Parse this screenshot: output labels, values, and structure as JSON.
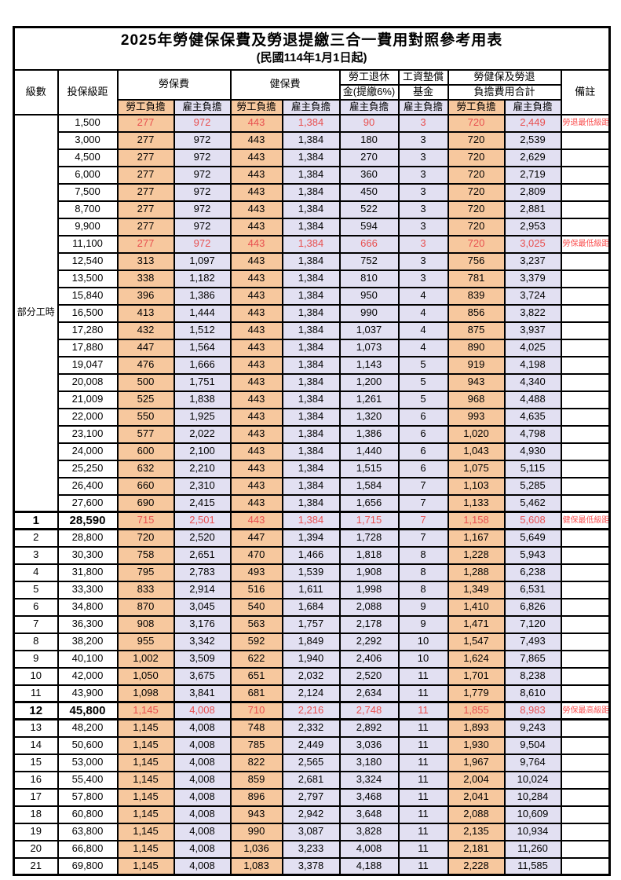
{
  "title": "2025年勞健保保費及勞退提繳三合一費用對照參考用表",
  "subtitle": "(民國114年1月1日起)",
  "colors": {
    "employee_bg": "#F7C89E",
    "employer_bg": "#E2E0F2",
    "highlight_red": "#E85050",
    "remark_red": "#FA5252"
  },
  "header": {
    "level": "級數",
    "bracket": "投保級距",
    "labor_ins": "勞保費",
    "health_ins": "健保費",
    "pension_l1": "勞工退休",
    "pension_l2": "金(提繳6%)",
    "fund_l1": "工資墊償",
    "fund_l2": "基金",
    "total_l1": "勞健保及勞退",
    "total_l2": "負擔費用合計",
    "remark": "備註",
    "employee": "勞工負擔",
    "employer": "雇主負擔"
  },
  "part_time_label": "部分工時",
  "part_time_rowspan": 23,
  "rows": [
    {
      "lv": "",
      "br": "1,500",
      "c": [
        "277",
        "972",
        "443",
        "1,384",
        "90",
        "3",
        "720",
        "2,449"
      ],
      "rm": "勞退最低級距",
      "hl": true
    },
    {
      "lv": "",
      "br": "3,000",
      "c": [
        "277",
        "972",
        "443",
        "1,384",
        "180",
        "3",
        "720",
        "2,539"
      ],
      "rm": ""
    },
    {
      "lv": "",
      "br": "4,500",
      "c": [
        "277",
        "972",
        "443",
        "1,384",
        "270",
        "3",
        "720",
        "2,629"
      ],
      "rm": ""
    },
    {
      "lv": "",
      "br": "6,000",
      "c": [
        "277",
        "972",
        "443",
        "1,384",
        "360",
        "3",
        "720",
        "2,719"
      ],
      "rm": ""
    },
    {
      "lv": "",
      "br": "7,500",
      "c": [
        "277",
        "972",
        "443",
        "1,384",
        "450",
        "3",
        "720",
        "2,809"
      ],
      "rm": ""
    },
    {
      "lv": "",
      "br": "8,700",
      "c": [
        "277",
        "972",
        "443",
        "1,384",
        "522",
        "3",
        "720",
        "2,881"
      ],
      "rm": ""
    },
    {
      "lv": "",
      "br": "9,900",
      "c": [
        "277",
        "972",
        "443",
        "1,384",
        "594",
        "3",
        "720",
        "2,953"
      ],
      "rm": ""
    },
    {
      "lv": "",
      "br": "11,100",
      "c": [
        "277",
        "972",
        "443",
        "1,384",
        "666",
        "3",
        "720",
        "3,025"
      ],
      "rm": "勞保最低級距",
      "hl": true
    },
    {
      "lv": "",
      "br": "12,540",
      "c": [
        "313",
        "1,097",
        "443",
        "1,384",
        "752",
        "3",
        "756",
        "3,237"
      ],
      "rm": ""
    },
    {
      "lv": "",
      "br": "13,500",
      "c": [
        "338",
        "1,182",
        "443",
        "1,384",
        "810",
        "3",
        "781",
        "3,379"
      ],
      "rm": ""
    },
    {
      "lv": "",
      "br": "15,840",
      "c": [
        "396",
        "1,386",
        "443",
        "1,384",
        "950",
        "4",
        "839",
        "3,724"
      ],
      "rm": ""
    },
    {
      "lv": "",
      "br": "16,500",
      "c": [
        "413",
        "1,444",
        "443",
        "1,384",
        "990",
        "4",
        "856",
        "3,822"
      ],
      "rm": ""
    },
    {
      "lv": "",
      "br": "17,280",
      "c": [
        "432",
        "1,512",
        "443",
        "1,384",
        "1,037",
        "4",
        "875",
        "3,937"
      ],
      "rm": ""
    },
    {
      "lv": "",
      "br": "17,880",
      "c": [
        "447",
        "1,564",
        "443",
        "1,384",
        "1,073",
        "4",
        "890",
        "4,025"
      ],
      "rm": ""
    },
    {
      "lv": "",
      "br": "19,047",
      "c": [
        "476",
        "1,666",
        "443",
        "1,384",
        "1,143",
        "5",
        "919",
        "4,198"
      ],
      "rm": ""
    },
    {
      "lv": "",
      "br": "20,008",
      "c": [
        "500",
        "1,751",
        "443",
        "1,384",
        "1,200",
        "5",
        "943",
        "4,340"
      ],
      "rm": ""
    },
    {
      "lv": "",
      "br": "21,009",
      "c": [
        "525",
        "1,838",
        "443",
        "1,384",
        "1,261",
        "5",
        "968",
        "4,488"
      ],
      "rm": ""
    },
    {
      "lv": "",
      "br": "22,000",
      "c": [
        "550",
        "1,925",
        "443",
        "1,384",
        "1,320",
        "6",
        "993",
        "4,635"
      ],
      "rm": ""
    },
    {
      "lv": "",
      "br": "23,100",
      "c": [
        "577",
        "2,022",
        "443",
        "1,384",
        "1,386",
        "6",
        "1,020",
        "4,798"
      ],
      "rm": ""
    },
    {
      "lv": "",
      "br": "24,000",
      "c": [
        "600",
        "2,100",
        "443",
        "1,384",
        "1,440",
        "6",
        "1,043",
        "4,930"
      ],
      "rm": ""
    },
    {
      "lv": "",
      "br": "25,250",
      "c": [
        "632",
        "2,210",
        "443",
        "1,384",
        "1,515",
        "6",
        "1,075",
        "5,115"
      ],
      "rm": ""
    },
    {
      "lv": "",
      "br": "26,400",
      "c": [
        "660",
        "2,310",
        "443",
        "1,384",
        "1,584",
        "7",
        "1,103",
        "5,285"
      ],
      "rm": ""
    },
    {
      "lv": "",
      "br": "27,600",
      "c": [
        "690",
        "2,415",
        "443",
        "1,384",
        "1,656",
        "7",
        "1,133",
        "5,462"
      ],
      "rm": ""
    },
    {
      "lv": "1",
      "br": "28,590",
      "c": [
        "715",
        "2,501",
        "443",
        "1,384",
        "1,715",
        "7",
        "1,158",
        "5,608"
      ],
      "rm": "健保最低級距",
      "hl": true,
      "big": true,
      "thick": true
    },
    {
      "lv": "2",
      "br": "28,800",
      "c": [
        "720",
        "2,520",
        "447",
        "1,394",
        "1,728",
        "7",
        "1,167",
        "5,649"
      ],
      "rm": "",
      "thick": true
    },
    {
      "lv": "3",
      "br": "30,300",
      "c": [
        "758",
        "2,651",
        "470",
        "1,466",
        "1,818",
        "8",
        "1,228",
        "5,943"
      ],
      "rm": ""
    },
    {
      "lv": "4",
      "br": "31,800",
      "c": [
        "795",
        "2,783",
        "493",
        "1,539",
        "1,908",
        "8",
        "1,288",
        "6,238"
      ],
      "rm": ""
    },
    {
      "lv": "5",
      "br": "33,300",
      "c": [
        "833",
        "2,914",
        "516",
        "1,611",
        "1,998",
        "8",
        "1,349",
        "6,531"
      ],
      "rm": ""
    },
    {
      "lv": "6",
      "br": "34,800",
      "c": [
        "870",
        "3,045",
        "540",
        "1,684",
        "2,088",
        "9",
        "1,410",
        "6,826"
      ],
      "rm": ""
    },
    {
      "lv": "7",
      "br": "36,300",
      "c": [
        "908",
        "3,176",
        "563",
        "1,757",
        "2,178",
        "9",
        "1,471",
        "7,120"
      ],
      "rm": ""
    },
    {
      "lv": "8",
      "br": "38,200",
      "c": [
        "955",
        "3,342",
        "592",
        "1,849",
        "2,292",
        "10",
        "1,547",
        "7,493"
      ],
      "rm": ""
    },
    {
      "lv": "9",
      "br": "40,100",
      "c": [
        "1,002",
        "3,509",
        "622",
        "1,940",
        "2,406",
        "10",
        "1,624",
        "7,865"
      ],
      "rm": ""
    },
    {
      "lv": "10",
      "br": "42,000",
      "c": [
        "1,050",
        "3,675",
        "651",
        "2,032",
        "2,520",
        "11",
        "1,701",
        "8,238"
      ],
      "rm": ""
    },
    {
      "lv": "11",
      "br": "43,900",
      "c": [
        "1,098",
        "3,841",
        "681",
        "2,124",
        "2,634",
        "11",
        "1,779",
        "8,610"
      ],
      "rm": ""
    },
    {
      "lv": "12",
      "br": "45,800",
      "c": [
        "1,145",
        "4,008",
        "710",
        "2,216",
        "2,748",
        "11",
        "1,855",
        "8,983"
      ],
      "rm": "勞保最高級距",
      "hl": true,
      "big": true,
      "thick": true
    },
    {
      "lv": "13",
      "br": "48,200",
      "c": [
        "1,145",
        "4,008",
        "748",
        "2,332",
        "2,892",
        "11",
        "1,893",
        "9,243"
      ],
      "rm": "",
      "thick": true
    },
    {
      "lv": "14",
      "br": "50,600",
      "c": [
        "1,145",
        "4,008",
        "785",
        "2,449",
        "3,036",
        "11",
        "1,930",
        "9,504"
      ],
      "rm": ""
    },
    {
      "lv": "15",
      "br": "53,000",
      "c": [
        "1,145",
        "4,008",
        "822",
        "2,565",
        "3,180",
        "11",
        "1,967",
        "9,764"
      ],
      "rm": ""
    },
    {
      "lv": "16",
      "br": "55,400",
      "c": [
        "1,145",
        "4,008",
        "859",
        "2,681",
        "3,324",
        "11",
        "2,004",
        "10,024"
      ],
      "rm": ""
    },
    {
      "lv": "17",
      "br": "57,800",
      "c": [
        "1,145",
        "4,008",
        "896",
        "2,797",
        "3,468",
        "11",
        "2,041",
        "10,284"
      ],
      "rm": ""
    },
    {
      "lv": "18",
      "br": "60,800",
      "c": [
        "1,145",
        "4,008",
        "943",
        "2,942",
        "3,648",
        "11",
        "2,088",
        "10,609"
      ],
      "rm": ""
    },
    {
      "lv": "19",
      "br": "63,800",
      "c": [
        "1,145",
        "4,008",
        "990",
        "3,087",
        "3,828",
        "11",
        "2,135",
        "10,934"
      ],
      "rm": ""
    },
    {
      "lv": "20",
      "br": "66,800",
      "c": [
        "1,145",
        "4,008",
        "1,036",
        "3,233",
        "4,008",
        "11",
        "2,181",
        "11,260"
      ],
      "rm": ""
    },
    {
      "lv": "21",
      "br": "69,800",
      "c": [
        "1,145",
        "4,008",
        "1,083",
        "3,378",
        "4,188",
        "11",
        "2,228",
        "11,585"
      ],
      "rm": ""
    }
  ]
}
